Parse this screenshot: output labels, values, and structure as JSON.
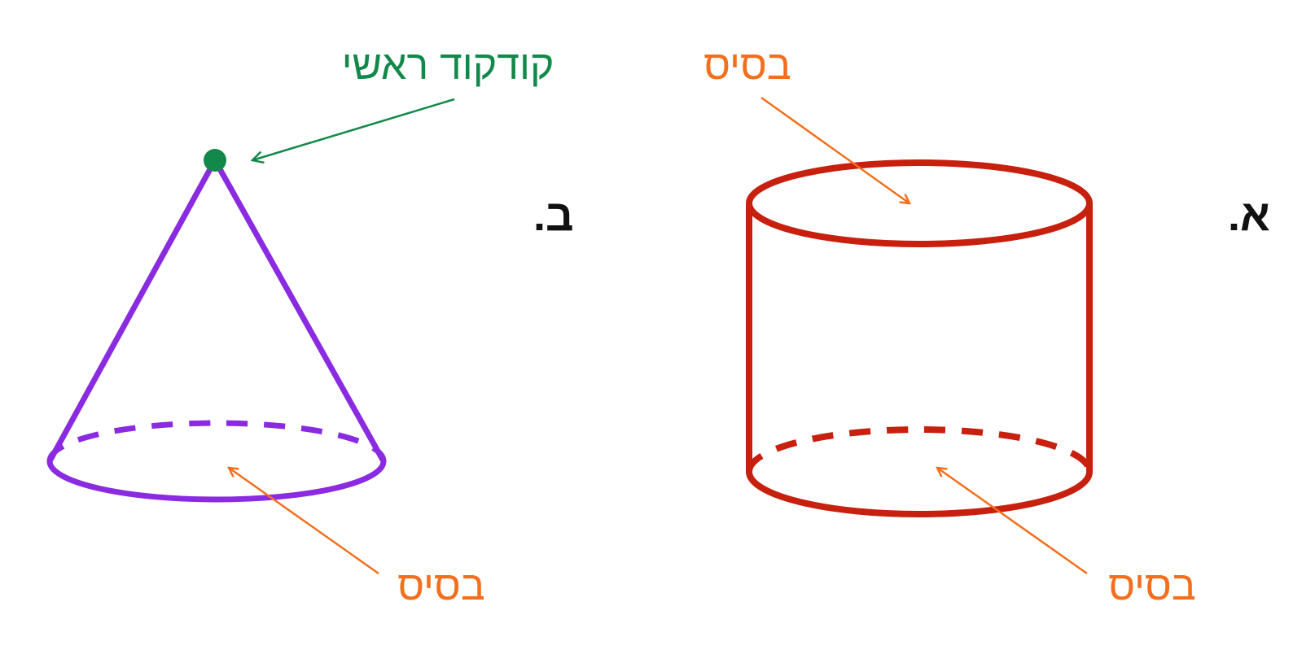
{
  "labels": {
    "figure_a": "א.",
    "figure_b": "ב.",
    "cylinder_top_base": "בסיס",
    "cylinder_bottom_base": "בסיס",
    "cone_base": "בסיס",
    "cone_apex": "קודקוד ראשי"
  },
  "colors": {
    "cylinder": "#c8200e",
    "cone": "#8a2be2",
    "base_label": "#f36f1d",
    "apex": "#12894a",
    "figure_letter": "#111111"
  },
  "shapes": {
    "figure_a": "cylinder",
    "figure_b": "cone"
  }
}
